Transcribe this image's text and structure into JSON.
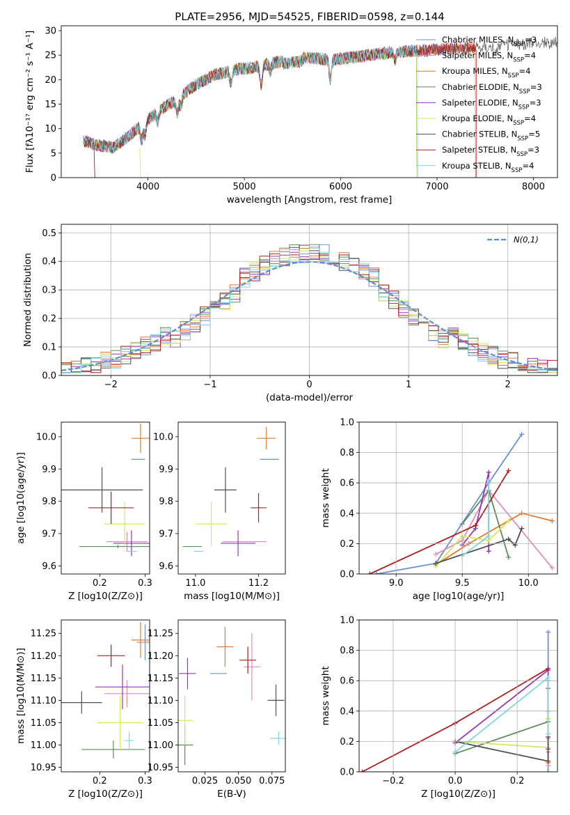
{
  "figure": {
    "title": "PLATE=2956, MJD=54525, FIBERID=0598, z=0.144"
  },
  "colors": {
    "Chabrier MILES": "#6a8fd6",
    "Salpeter MILES": "#e08cbf",
    "Kroupa MILES": "#e07b28",
    "Chabrier ELODIE": "#5b8a5b",
    "Salpeter ELODIE": "#9a34b8",
    "Kroupa ELODIE": "#d4e85a",
    "Chabrier STELIB": "#4d4d4d",
    "Salpeter STELIB": "#b01c1c",
    "Kroupa STELIB": "#7fd6e0",
    "normal": "#5b8ad6",
    "grid": "#b0b0b0"
  },
  "chart_data": [
    {
      "id": "spectrum",
      "type": "line",
      "xlabel": "wavelength [Angstrom, rest frame]",
      "ylabel": "Flux [fλ10⁻¹⁷ erg cm⁻² s⁻¹ A⁻¹]",
      "xlim": [
        3100,
        8250
      ],
      "ylim": [
        0,
        31
      ],
      "xticks": [
        4000,
        5000,
        6000,
        7000,
        8000
      ],
      "yticks": [
        0,
        5,
        10,
        15,
        20,
        25,
        30
      ],
      "grid": false,
      "legend_position": "top-right",
      "series": [
        {
          "name": "Chabrier MILES, NSSP=3",
          "cutoff": 7400
        },
        {
          "name": "Salpeter MILES, NSSP=4",
          "cutoff": 7400
        },
        {
          "name": "Kroupa MILES, NSSP=4",
          "cutoff": 7400
        },
        {
          "name": "Chabrier ELODIE, NSSP=3",
          "cutoff": 6790
        },
        {
          "name": "Salpeter ELODIE, NSSP=3",
          "cutoff": 6790
        },
        {
          "name": "Kroupa ELODIE, NSSP=4",
          "cutoff": 6790
        },
        {
          "name": "Chabrier STELIB, NSSP=5",
          "cutoff": 8250
        },
        {
          "name": "Salpeter STELIB, NSSP=3",
          "cutoff": 7410
        },
        {
          "name": "Kroupa STELIB, NSSP=4",
          "cutoff": 6800
        }
      ],
      "continuum": [
        [
          3330,
          7.5
        ],
        [
          3500,
          6.5
        ],
        [
          3650,
          6.2
        ],
        [
          3800,
          8.5
        ],
        [
          3950,
          11
        ],
        [
          4100,
          13.5
        ],
        [
          4300,
          16
        ],
        [
          4500,
          19
        ],
        [
          4700,
          21
        ],
        [
          4900,
          22
        ],
        [
          5100,
          22.5
        ],
        [
          5300,
          23.5
        ],
        [
          5500,
          24
        ],
        [
          5700,
          24.5
        ],
        [
          5900,
          24
        ],
        [
          6100,
          24.5
        ],
        [
          6300,
          25
        ],
        [
          6500,
          25.5
        ],
        [
          6700,
          25.8
        ],
        [
          6900,
          26
        ],
        [
          7100,
          26.3
        ],
        [
          7300,
          26.5
        ],
        [
          7500,
          26.8
        ],
        [
          7700,
          27
        ],
        [
          7900,
          27.3
        ],
        [
          8100,
          27.5
        ],
        [
          8250,
          27.5
        ]
      ]
    },
    {
      "id": "residual_histogram",
      "type": "bar",
      "xlabel": "(data-model)/error",
      "ylabel": "Normed distribution",
      "xlim": [
        -2.5,
        2.5
      ],
      "ylim": [
        0,
        0.53
      ],
      "xticks": [
        -2,
        -1,
        0,
        1,
        2
      ],
      "yticks": [
        0.0,
        0.1,
        0.2,
        0.3,
        0.4,
        0.5
      ],
      "grid": true,
      "legend_position": "top-right",
      "legend": "N(0,1)",
      "bin_edges": [
        -2.5,
        -2.4,
        -2.3,
        -2.2,
        -2.1,
        -2.0,
        -1.9,
        -1.8,
        -1.7,
        -1.6,
        -1.5,
        -1.4,
        -1.3,
        -1.2,
        -1.1,
        -1.0,
        -0.9,
        -0.8,
        -0.7,
        -0.6,
        -0.5,
        -0.4,
        -0.3,
        -0.2,
        -0.1,
        0.0,
        0.1,
        0.2,
        0.3,
        0.4,
        0.5,
        0.6,
        0.7,
        0.8,
        0.9,
        1.0,
        1.1,
        1.2,
        1.3,
        1.4,
        1.5,
        1.6,
        1.7,
        1.8,
        1.9,
        2.0,
        2.1,
        2.2,
        2.3,
        2.4,
        2.5
      ],
      "normal_mean": 0,
      "normal_sigma": 1
    },
    {
      "id": "age_vs_Z",
      "type": "scatter",
      "xlabel": "Z [log10(Z/Z⊙)]",
      "ylabel": "age [log10(age/yr)]",
      "xlim": [
        0.115,
        0.31
      ],
      "ylim": [
        9.575,
        10.045
      ],
      "xticks": [
        0.2,
        0.3
      ],
      "yticks": [
        9.6,
        9.7,
        9.8,
        9.9,
        10.0
      ],
      "points": [
        {
          "series": "Chabrier MILES",
          "x": 0.285,
          "xerr": 0.015,
          "y": 9.93,
          "yerr": 0.0
        },
        {
          "series": "Salpeter MILES",
          "x": 0.26,
          "xerr": 0.045,
          "y": 9.675,
          "yerr": 0.03
        },
        {
          "series": "Kroupa MILES",
          "x": 0.29,
          "xerr": 0.02,
          "y": 9.995,
          "yerr": 0.045
        },
        {
          "series": "Chabrier ELODIE",
          "x": 0.24,
          "xerr": 0.085,
          "y": 9.66,
          "yerr": 0.005
        },
        {
          "series": "Salpeter ELODIE",
          "x": 0.27,
          "xerr": 0.04,
          "y": 9.67,
          "yerr": 0.04
        },
        {
          "series": "Kroupa ELODIE",
          "x": 0.255,
          "xerr": 0.045,
          "y": 9.73,
          "yerr": 0.07
        },
        {
          "series": "Chabrier STELIB",
          "x": 0.205,
          "xerr": 0.09,
          "y": 9.835,
          "yerr": 0.07
        },
        {
          "series": "Salpeter STELIB",
          "x": 0.225,
          "xerr": 0.05,
          "y": 9.78,
          "yerr": 0.05
        },
        {
          "series": "Kroupa STELIB",
          "x": 0.27,
          "xerr": 0.012,
          "y": 9.645,
          "yerr": 0.0
        }
      ]
    },
    {
      "id": "age_vs_mass",
      "type": "scatter",
      "xlabel": "mass [log10(M/M⊙)]",
      "ylabel": "",
      "xlim": [
        10.945,
        11.285
      ],
      "ylim": [
        9.575,
        10.045
      ],
      "xticks": [
        11.0,
        11.2
      ],
      "yticks": [
        9.6,
        9.7,
        9.8,
        9.9,
        10.0
      ],
      "points": [
        {
          "series": "Chabrier MILES",
          "x": 11.235,
          "xerr": 0.03,
          "y": 9.93,
          "yerr": 0.0
        },
        {
          "series": "Salpeter MILES",
          "x": 11.155,
          "xerr": 0.07,
          "y": 9.675,
          "yerr": 0.0
        },
        {
          "series": "Kroupa MILES",
          "x": 11.225,
          "xerr": 0.03,
          "y": 9.995,
          "yerr": 0.035
        },
        {
          "series": "Chabrier ELODIE",
          "x": 10.99,
          "xerr": 0.03,
          "y": 9.66,
          "yerr": 0.0
        },
        {
          "series": "Salpeter ELODIE",
          "x": 11.135,
          "xerr": 0.055,
          "y": 9.67,
          "yerr": 0.04
        },
        {
          "series": "Kroupa ELODIE",
          "x": 11.05,
          "xerr": 0.05,
          "y": 9.73,
          "yerr": 0.07
        },
        {
          "series": "Chabrier STELIB",
          "x": 11.095,
          "xerr": 0.035,
          "y": 9.835,
          "yerr": 0.07
        },
        {
          "series": "Salpeter STELIB",
          "x": 11.2,
          "xerr": 0.025,
          "y": 9.78,
          "yerr": 0.045
        },
        {
          "series": "Kroupa STELIB",
          "x": 11.01,
          "xerr": 0.015,
          "y": 9.645,
          "yerr": 0.0
        }
      ]
    },
    {
      "id": "weight_vs_age",
      "type": "line",
      "xlabel": "age [log10(age/yr)]",
      "ylabel": "mass weight",
      "xlim": [
        8.72,
        10.22
      ],
      "ylim": [
        0,
        1.0
      ],
      "xticks": [
        9.0,
        9.5,
        10.0
      ],
      "yticks": [
        0.0,
        0.2,
        0.4,
        0.6,
        0.8,
        1.0
      ],
      "grid": true,
      "series": [
        {
          "name": "Chabrier MILES",
          "x": [
            8.85,
            9.3,
            9.7,
            9.95
          ],
          "y": [
            0.0,
            0.07,
            0.6,
            0.92
          ]
        },
        {
          "name": "Salpeter MILES",
          "x": [
            9.3,
            9.5,
            9.7,
            10.18
          ],
          "y": [
            0.13,
            0.22,
            0.55,
            0.04
          ]
        },
        {
          "name": "Kroupa MILES",
          "x": [
            9.3,
            9.55,
            9.95,
            10.18
          ],
          "y": [
            0.06,
            0.2,
            0.4,
            0.35
          ]
        },
        {
          "name": "Chabrier ELODIE",
          "x": [
            9.5,
            9.7,
            9.85
          ],
          "y": [
            0.33,
            0.55,
            0.11
          ]
        },
        {
          "name": "Salpeter ELODIE",
          "x": [
            9.5,
            9.6,
            9.7,
            9.7
          ],
          "y": [
            0.19,
            0.3,
            0.67,
            0.15
          ]
        },
        {
          "name": "Kroupa ELODIE",
          "x": [
            9.3,
            9.5,
            9.7,
            9.85
          ],
          "y": [
            0.05,
            0.25,
            0.22,
            0.35
          ]
        },
        {
          "name": "Chabrier STELIB",
          "x": [
            9.3,
            9.85,
            9.9,
            9.95
          ],
          "y": [
            0.07,
            0.23,
            0.19,
            0.3
          ]
        },
        {
          "name": "Salpeter STELIB",
          "x": [
            8.8,
            9.6,
            9.85
          ],
          "y": [
            0.0,
            0.32,
            0.68
          ]
        },
        {
          "name": "Kroupa STELIB",
          "x": [
            9.5,
            9.7,
            9.7
          ],
          "y": [
            0.12,
            0.25,
            0.62
          ]
        }
      ]
    },
    {
      "id": "mass_vs_Z",
      "type": "scatter",
      "xlabel": "Z [log10(Z/Z⊙)]",
      "ylabel": "mass [log10(M/M⊙)]",
      "xlim": [
        0.115,
        0.31
      ],
      "ylim": [
        10.94,
        11.28
      ],
      "xticks": [
        0.2,
        0.3
      ],
      "yticks": [
        10.95,
        11.0,
        11.05,
        11.1,
        11.15,
        11.2,
        11.25
      ],
      "points": [
        {
          "series": "Chabrier MILES",
          "x": 0.3,
          "xerr": 0.0,
          "y": 11.23,
          "yerr": 0.04
        },
        {
          "series": "Salpeter MILES",
          "x": 0.26,
          "xerr": 0.05,
          "y": 11.115,
          "yerr": 0.03
        },
        {
          "series": "Kroupa MILES",
          "x": 0.29,
          "xerr": 0.02,
          "y": 11.235,
          "yerr": 0.04
        },
        {
          "series": "Chabrier ELODIE",
          "x": 0.23,
          "xerr": 0.07,
          "y": 10.99,
          "yerr": 0.02
        },
        {
          "series": "Salpeter ELODIE",
          "x": 0.25,
          "xerr": 0.06,
          "y": 11.13,
          "yerr": 0.05
        },
        {
          "series": "Kroupa ELODIE",
          "x": 0.245,
          "xerr": 0.05,
          "y": 11.05,
          "yerr": 0.06
        },
        {
          "series": "Chabrier STELIB",
          "x": 0.16,
          "xerr": 0.045,
          "y": 11.095,
          "yerr": 0.025
        },
        {
          "series": "Salpeter STELIB",
          "x": 0.225,
          "xerr": 0.03,
          "y": 11.2,
          "yerr": 0.025
        },
        {
          "series": "Kroupa STELIB",
          "x": 0.265,
          "xerr": 0.01,
          "y": 11.01,
          "yerr": 0.02
        }
      ]
    },
    {
      "id": "mass_vs_EBV",
      "type": "scatter",
      "xlabel": "E(B-V)",
      "ylabel": "",
      "xlim": [
        0.005,
        0.085
      ],
      "ylim": [
        10.94,
        11.28
      ],
      "xticks": [
        0.025,
        0.05,
        0.075
      ],
      "yticks": [
        10.95,
        11.0,
        11.05,
        11.1,
        11.15,
        11.2,
        11.25
      ],
      "points": [
        {
          "series": "Chabrier MILES",
          "x": 0.035,
          "xerr": 0.0,
          "y": 11.16,
          "yerr": 0.0
        },
        {
          "series": "Salpeter MILES",
          "x": 0.06,
          "xerr": 0.0,
          "y": 11.175,
          "yerr": 0.075
        },
        {
          "series": "Kroupa MILES",
          "x": 0.04,
          "xerr": 0.0,
          "y": 11.22,
          "yerr": 0.045
        },
        {
          "series": "Chabrier ELODIE",
          "x": 0.01,
          "xerr": 0.0,
          "y": 11.0,
          "yerr": 0.045
        },
        {
          "series": "Salpeter ELODIE",
          "x": 0.012,
          "xerr": 0.0,
          "y": 11.16,
          "yerr": 0.035
        },
        {
          "series": "Kroupa ELODIE",
          "x": 0.01,
          "xerr": 0.0,
          "y": 11.055,
          "yerr": 0.055
        },
        {
          "series": "Chabrier STELIB",
          "x": 0.078,
          "xerr": 0.0,
          "y": 11.1,
          "yerr": 0.035
        },
        {
          "series": "Salpeter STELIB",
          "x": 0.057,
          "xerr": 0.0,
          "y": 11.19,
          "yerr": 0.03
        },
        {
          "series": "Kroupa STELIB",
          "x": 0.08,
          "xerr": 0.0,
          "y": 11.015,
          "yerr": 0.015
        }
      ]
    },
    {
      "id": "weight_vs_Z",
      "type": "line",
      "xlabel": "Z [log10(Z/Z⊙)]",
      "ylabel": "mass weight",
      "xlim": [
        -0.31,
        0.33
      ],
      "ylim": [
        0,
        1.0
      ],
      "xticks": [
        -0.2,
        0.0,
        0.2
      ],
      "yticks": [
        0.0,
        0.2,
        0.4,
        0.6,
        0.8,
        1.0
      ],
      "grid": true,
      "series": [
        {
          "name": "Chabrier MILES",
          "x": [
            0.3,
            0.3,
            0.3
          ],
          "y": [
            0.0,
            0.6,
            0.92
          ]
        },
        {
          "name": "Salpeter MILES",
          "x": [
            0.3,
            0.3,
            0.3,
            0.3
          ],
          "y": [
            0.04,
            0.13,
            0.22,
            0.55
          ]
        },
        {
          "name": "Kroupa MILES",
          "x": [
            0.3,
            0.3,
            0.3
          ],
          "y": [
            0.06,
            0.35,
            0.4
          ]
        },
        {
          "name": "Chabrier ELODIE",
          "x": [
            0.0,
            0.3,
            0.3
          ],
          "y": [
            0.12,
            0.33,
            0.55
          ]
        },
        {
          "name": "Salpeter ELODIE",
          "x": [
            0.0,
            0.3,
            0.3
          ],
          "y": [
            0.19,
            0.67,
            0.15
          ]
        },
        {
          "name": "Kroupa ELODIE",
          "x": [
            0.0,
            0.3,
            0.3
          ],
          "y": [
            0.2,
            0.16,
            0.35
          ]
        },
        {
          "name": "Chabrier STELIB",
          "x": [
            0.0,
            0.3,
            0.3
          ],
          "y": [
            0.2,
            0.07,
            0.23
          ]
        },
        {
          "name": "Salpeter STELIB",
          "x": [
            -0.3,
            0.0,
            0.3
          ],
          "y": [
            0.0,
            0.32,
            0.68
          ]
        },
        {
          "name": "Kroupa STELIB",
          "x": [
            0.0,
            0.3,
            0.3
          ],
          "y": [
            0.13,
            0.62,
            0.25
          ]
        }
      ]
    }
  ]
}
